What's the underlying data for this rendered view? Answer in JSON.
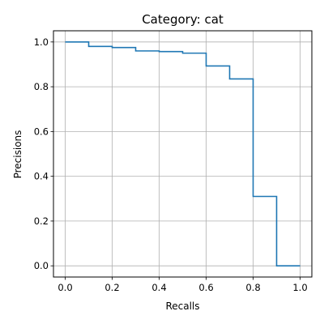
{
  "chart_data": {
    "type": "line",
    "step": "post",
    "title": "Category: cat",
    "xlabel": "Recalls",
    "ylabel": "Precisions",
    "xlim": [
      -0.05,
      1.05
    ],
    "ylim": [
      -0.05,
      1.05
    ],
    "xticks": [
      0.0,
      0.2,
      0.4,
      0.6,
      0.8,
      1.0
    ],
    "xtick_labels": [
      "0.0",
      "0.2",
      "0.4",
      "0.6",
      "0.8",
      "1.0"
    ],
    "yticks": [
      0.0,
      0.2,
      0.4,
      0.6,
      0.8,
      1.0
    ],
    "ytick_labels": [
      "0.0",
      "0.2",
      "0.4",
      "0.6",
      "0.8",
      "1.0"
    ],
    "grid": true,
    "series": [
      {
        "color": "#1f77b4",
        "x": [
          0.0,
          0.1,
          0.2,
          0.3,
          0.4,
          0.5,
          0.6,
          0.7,
          0.8,
          0.9,
          1.0
        ],
        "y": [
          1.0,
          0.98,
          0.975,
          0.96,
          0.957,
          0.95,
          0.893,
          0.835,
          0.31,
          0.0,
          0.0
        ]
      }
    ]
  }
}
